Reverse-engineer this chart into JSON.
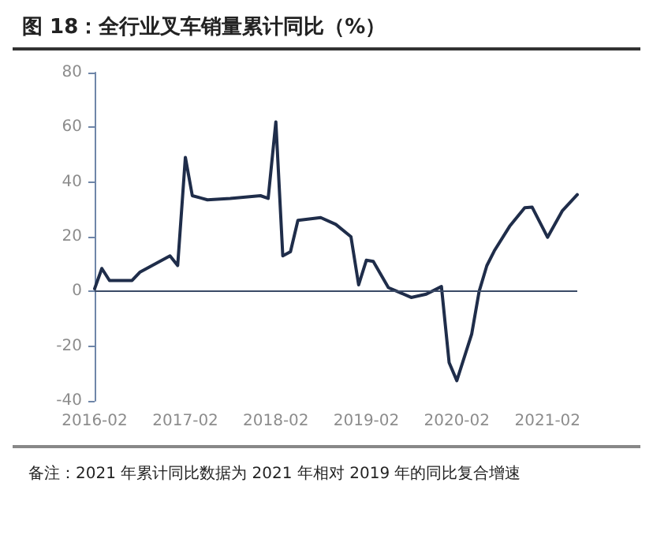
{
  "chart_data": {
    "type": "line",
    "title": "图 18：全行业叉车销量累计同比（%）",
    "annotations": [
      "备注：2021 年累计同比数据为 2021 年相对 2019 年的同比复合增速"
    ],
    "x": [
      "2016-02",
      "2016-03",
      "2016-04",
      "2016-07",
      "2016-08",
      "2016-12",
      "2017-01",
      "2017-02",
      "2017-03",
      "2017-05",
      "2017-08",
      "2017-12",
      "2018-01",
      "2018-02",
      "2018-03",
      "2018-04",
      "2018-05",
      "2018-08",
      "2018-10",
      "2018-12",
      "2019-01",
      "2019-02",
      "2019-03",
      "2019-05",
      "2019-08",
      "2019-10",
      "2019-12",
      "2020-01",
      "2020-02",
      "2020-04",
      "2020-05",
      "2020-06",
      "2020-07",
      "2020-09",
      "2020-11",
      "2020-12",
      "2021-02",
      "2021-04",
      "2021-06"
    ],
    "series": [
      {
        "color": "#1f2d4a",
        "values": [
          1,
          8.4,
          4,
          4,
          7,
          13,
          9.5,
          49,
          35,
          33.5,
          34,
          35,
          34,
          62,
          13,
          14.5,
          26,
          27,
          24.5,
          20,
          2.4,
          11.4,
          11,
          1.4,
          -2.2,
          -1,
          1.8,
          -26,
          -32.6,
          -15.6,
          0,
          9.4,
          14.8,
          23.8,
          30.6,
          30.8,
          19.8,
          29.4,
          35.4
        ]
      }
    ],
    "xlim": [
      "2016-02",
      "2021-06"
    ],
    "xticks": [
      {
        "value": "2016-02",
        "label": "2016-02"
      },
      {
        "value": "2017-02",
        "label": "2017-02"
      },
      {
        "value": "2018-02",
        "label": "2018-02"
      },
      {
        "value": "2019-02",
        "label": "2019-02"
      },
      {
        "value": "2020-02",
        "label": "2020-02"
      },
      {
        "value": "2021-02",
        "label": "2021-02"
      }
    ],
    "ylim": [
      -40,
      80
    ],
    "yticks": [
      -40,
      -20,
      0,
      20,
      40,
      60,
      80
    ],
    "ref_lines": [
      {
        "axis": "y",
        "value": 0,
        "color": "#3a4a66"
      }
    ],
    "grid": false,
    "marker": "none",
    "line_style": "solid"
  }
}
